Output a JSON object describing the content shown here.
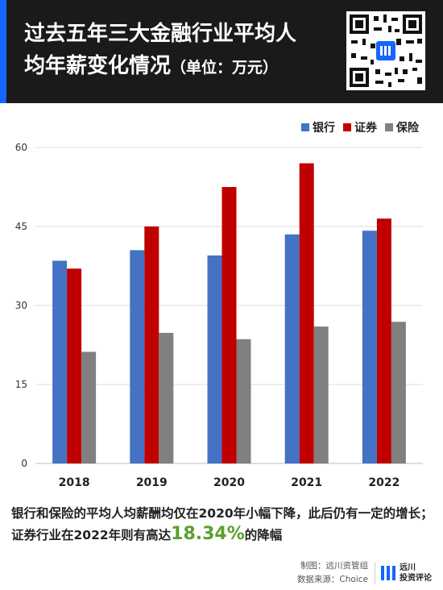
{
  "header": {
    "title_line1": "过去五年三大金融行业平均人",
    "title_line2": "均年薪变化情况",
    "unit": "（单位：万元）"
  },
  "legend": [
    {
      "label": "银行",
      "color": "#4472c4"
    },
    {
      "label": "证券",
      "color": "#c00000"
    },
    {
      "label": "保险",
      "color": "#808080"
    }
  ],
  "chart_data": {
    "type": "bar",
    "categories": [
      "2018",
      "2019",
      "2020",
      "2021",
      "2022"
    ],
    "series": [
      {
        "name": "银行",
        "values": [
          38.5,
          40.5,
          39.5,
          43.5,
          44.2
        ],
        "color": "#4472c4"
      },
      {
        "name": "证券",
        "values": [
          37.0,
          45.0,
          52.5,
          57.0,
          46.5
        ],
        "color": "#c00000"
      },
      {
        "name": "保险",
        "values": [
          21.2,
          24.8,
          23.6,
          26.0,
          26.9
        ],
        "color": "#808080"
      }
    ],
    "yticks": [
      0,
      15,
      30,
      45,
      60
    ],
    "ylim": [
      0,
      60
    ],
    "grid": true,
    "legend_position": "top-right"
  },
  "summary": {
    "before": "银行和保险的平均人均薪酬均仅在2020年小幅下降，此后仍有一定的增长；证券行业在2022年则有高达",
    "highlight": "18.34%",
    "after": "的降幅"
  },
  "footer": {
    "maker": "制图：远川资管组",
    "source": "数据来源：Choice",
    "logo_line1": "远川",
    "logo_line2": "投资评论"
  }
}
